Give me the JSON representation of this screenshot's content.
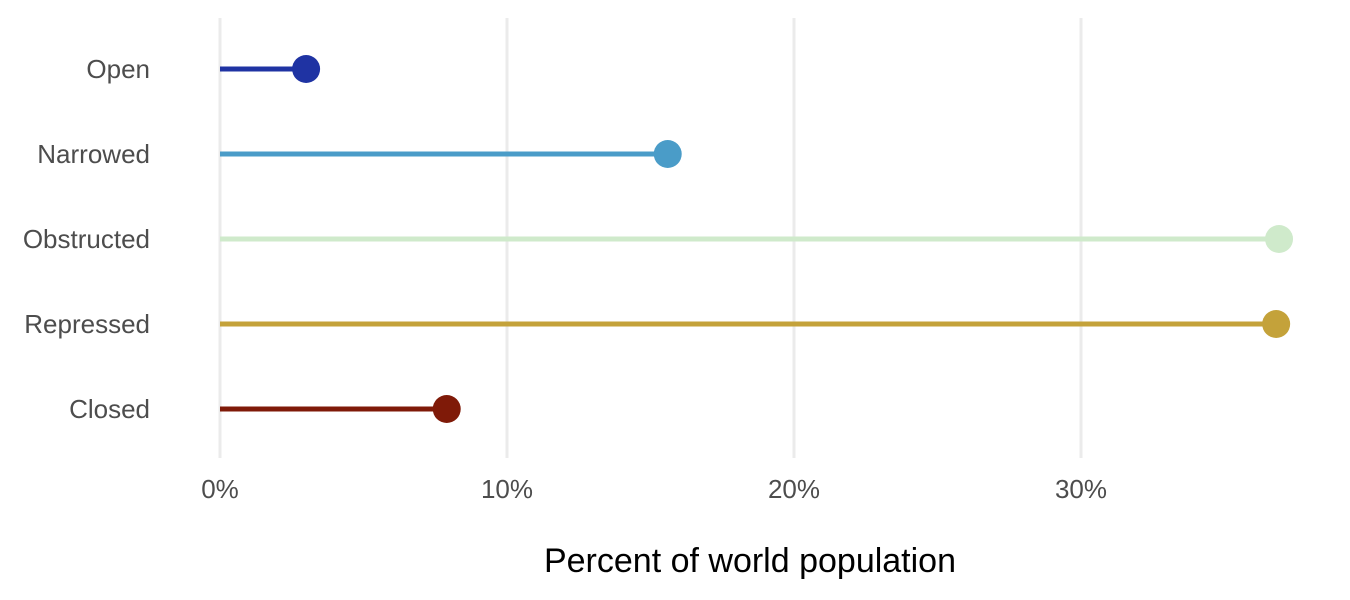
{
  "chart_data": {
    "type": "lollipop",
    "xlabel": "Percent of world population",
    "ylabel": "",
    "xlim": [
      0,
      37
    ],
    "x_ticks": [
      0,
      10,
      20,
      30
    ],
    "x_tick_labels": [
      "0%",
      "10%",
      "20%",
      "30%"
    ],
    "grid": true,
    "categories": [
      "Open",
      "Narrowed",
      "Obstructed",
      "Repressed",
      "Closed"
    ],
    "values": [
      3.0,
      15.6,
      36.9,
      36.8,
      7.9
    ],
    "colors": [
      "#1f33a3",
      "#4a9cc8",
      "#cfeacb",
      "#c4a23a",
      "#7f1a08"
    ]
  }
}
